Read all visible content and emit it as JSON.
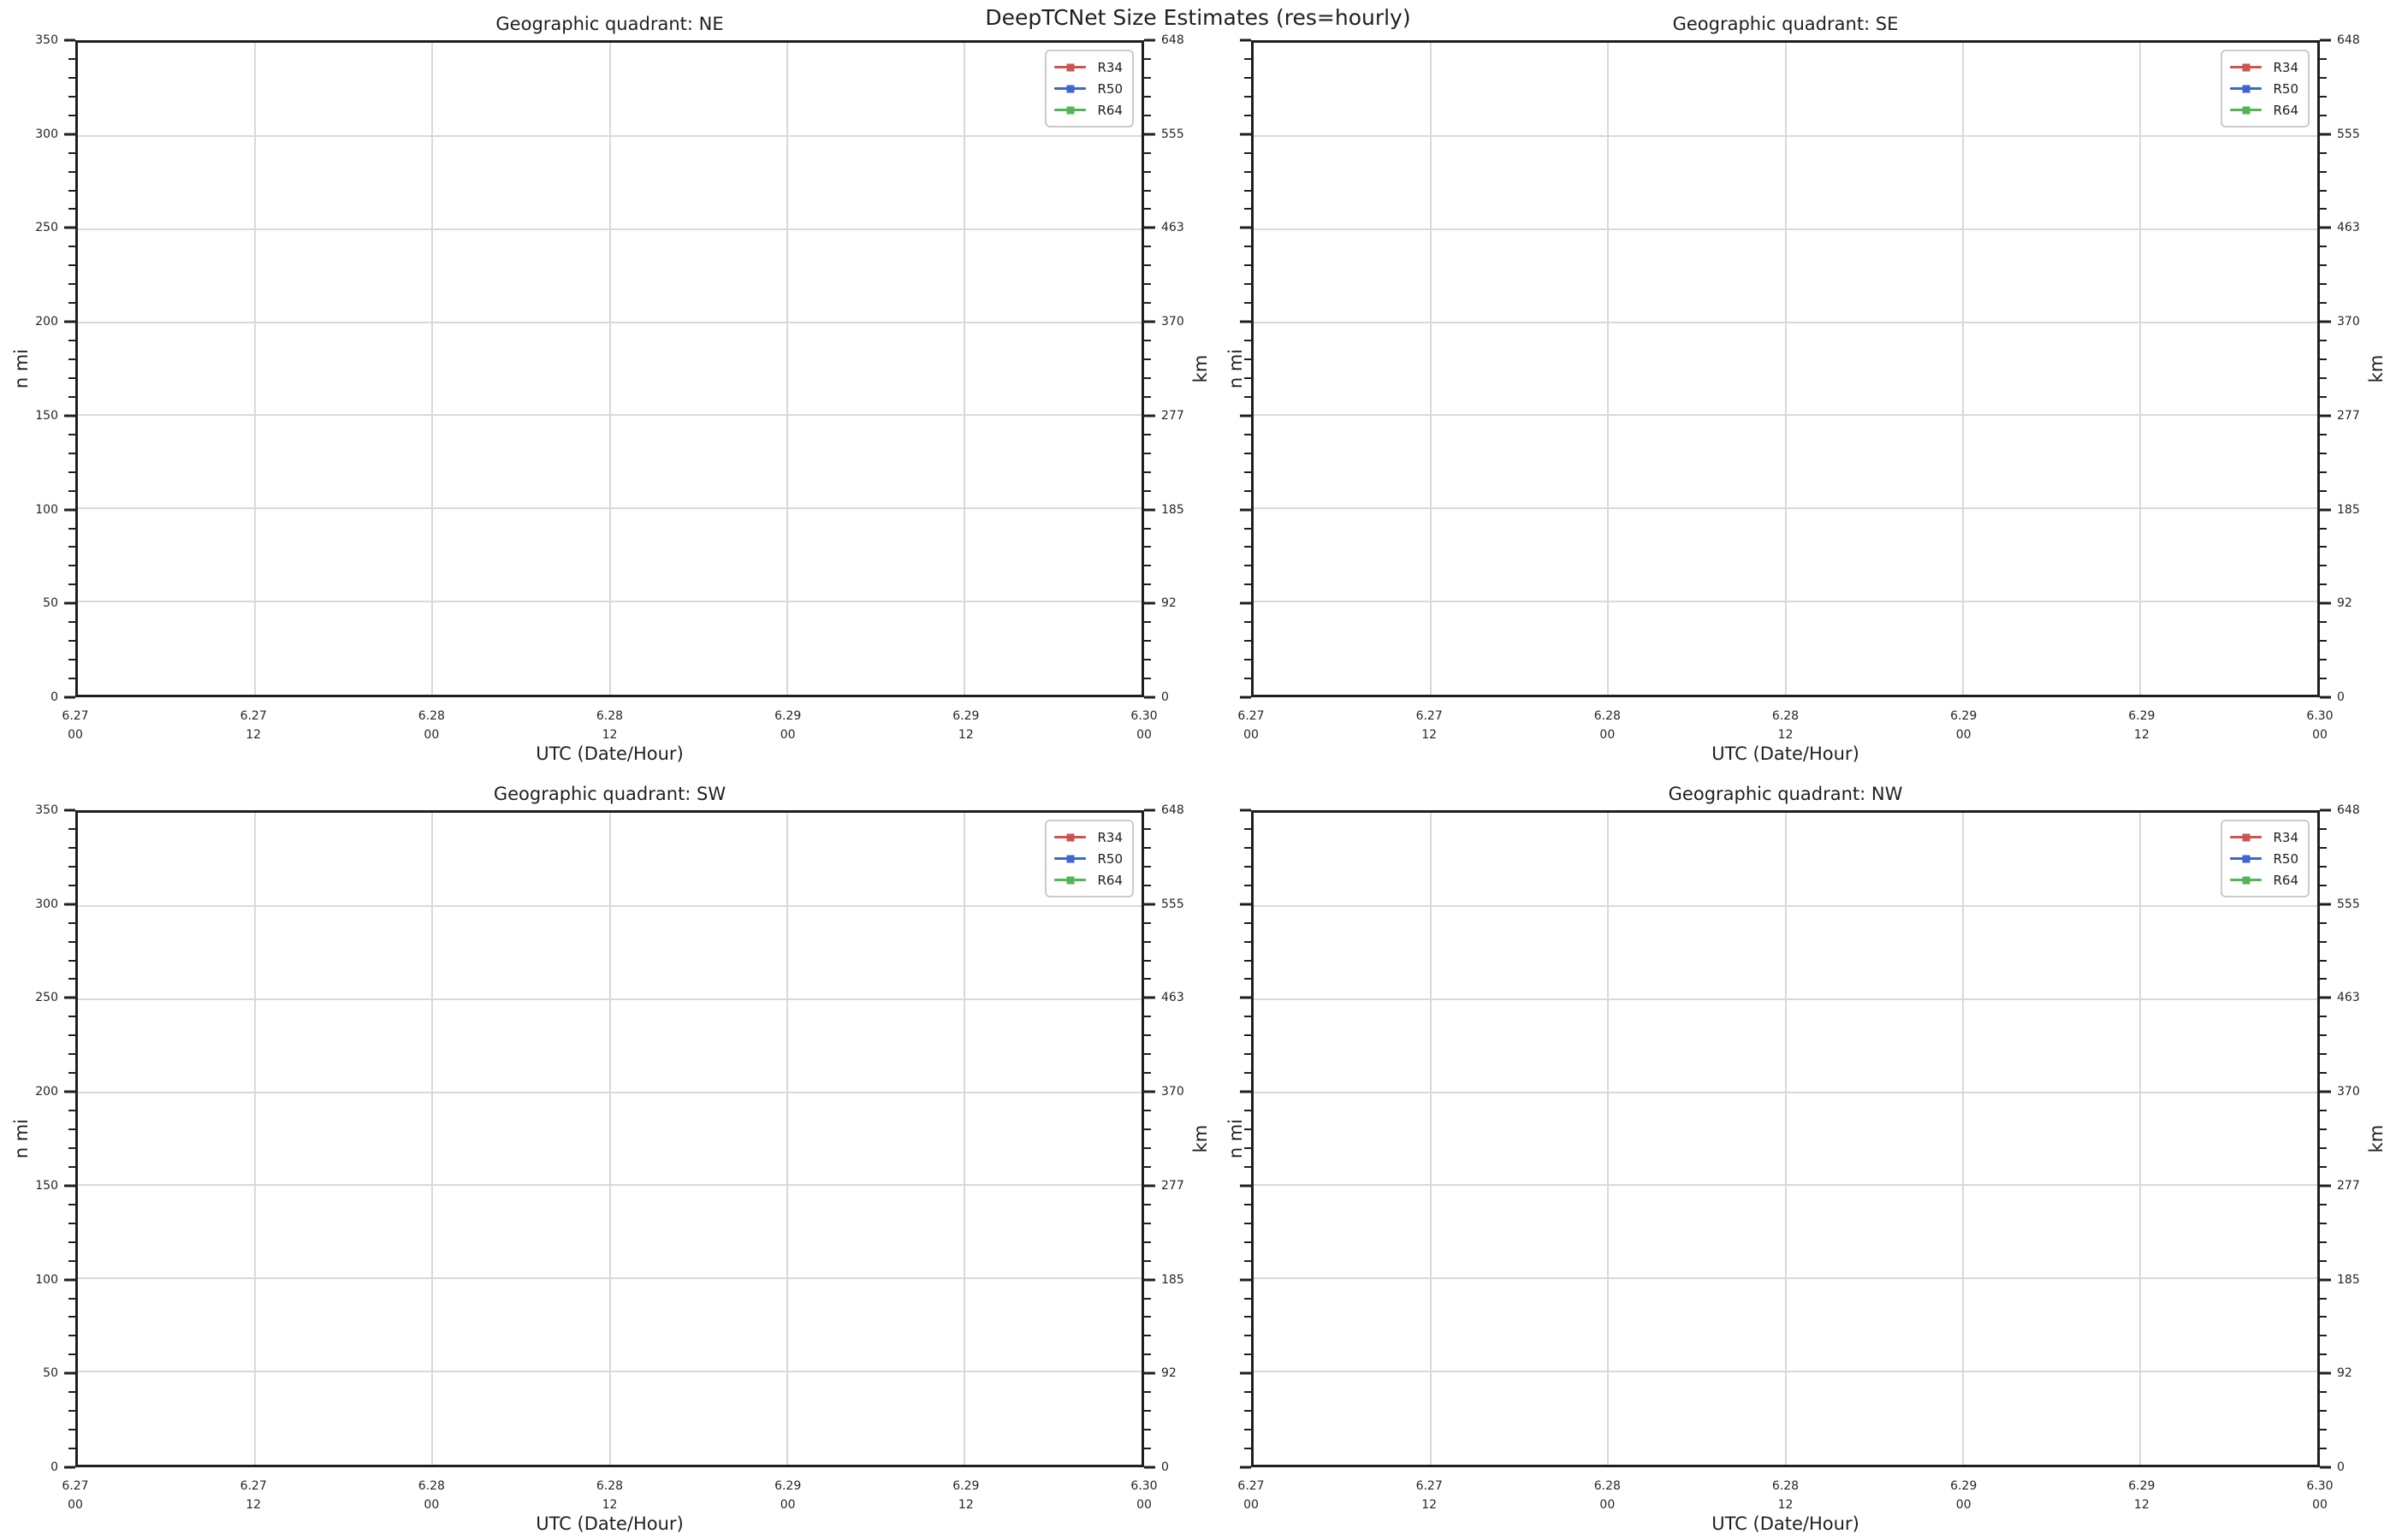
{
  "figure": {
    "suptitle": "DeepTCNet Size Estimates (res=hourly)",
    "background_color": "#ffffff",
    "text_color": "#1f1f1f",
    "grid_color": "#d9d9d9"
  },
  "legend": {
    "position": "upper right",
    "entries": [
      {
        "label": "R34",
        "color": "#cf5450"
      },
      {
        "label": "R50",
        "color": "#3f66d0"
      },
      {
        "label": "R64",
        "color": "#53b556"
      }
    ]
  },
  "chart_data": [
    {
      "type": "line",
      "title": "Geographic quadrant: NE",
      "quadrant": "NE",
      "xlabel": "UTC (Date/Hour)",
      "ylabel_left": "n mi",
      "ylabel_right": "km",
      "ylim_left": [
        0,
        350
      ],
      "ylim_right": [
        0,
        648
      ],
      "y_ticks_left": [
        0,
        50,
        100,
        150,
        200,
        250,
        300,
        350
      ],
      "y_ticks_right": [
        0,
        92,
        185,
        277,
        370,
        463,
        555,
        648
      ],
      "x_tick_labels": [
        [
          "6.27",
          "00"
        ],
        [
          "6.27",
          "12"
        ],
        [
          "6.28",
          "00"
        ],
        [
          "6.28",
          "12"
        ],
        [
          "6.29",
          "00"
        ],
        [
          "6.29",
          "12"
        ],
        [
          "6.30",
          "00"
        ]
      ],
      "grid": true,
      "legend_position": "upper right",
      "show_left_tick_labels": true,
      "series": [
        {
          "name": "R34",
          "color": "#cf5450",
          "x": [],
          "y": []
        },
        {
          "name": "R50",
          "color": "#3f66d0",
          "x": [],
          "y": []
        },
        {
          "name": "R64",
          "color": "#53b556",
          "x": [],
          "y": []
        }
      ]
    },
    {
      "type": "line",
      "title": "Geographic quadrant: SE",
      "quadrant": "SE",
      "xlabel": "UTC (Date/Hour)",
      "ylabel_left": "n mi",
      "ylabel_right": "km",
      "ylim_left": [
        0,
        350
      ],
      "ylim_right": [
        0,
        648
      ],
      "y_ticks_left": [
        0,
        50,
        100,
        150,
        200,
        250,
        300,
        350
      ],
      "y_ticks_right": [
        0,
        92,
        185,
        277,
        370,
        463,
        555,
        648
      ],
      "x_tick_labels": [
        [
          "6.27",
          "00"
        ],
        [
          "6.27",
          "12"
        ],
        [
          "6.28",
          "00"
        ],
        [
          "6.28",
          "12"
        ],
        [
          "6.29",
          "00"
        ],
        [
          "6.29",
          "12"
        ],
        [
          "6.30",
          "00"
        ]
      ],
      "grid": true,
      "legend_position": "upper right",
      "show_left_tick_labels": false,
      "series": [
        {
          "name": "R34",
          "color": "#cf5450",
          "x": [],
          "y": []
        },
        {
          "name": "R50",
          "color": "#3f66d0",
          "x": [],
          "y": []
        },
        {
          "name": "R64",
          "color": "#53b556",
          "x": [],
          "y": []
        }
      ]
    },
    {
      "type": "line",
      "title": "Geographic quadrant: SW",
      "quadrant": "SW",
      "xlabel": "UTC (Date/Hour)",
      "ylabel_left": "n mi",
      "ylabel_right": "km",
      "ylim_left": [
        0,
        350
      ],
      "ylim_right": [
        0,
        648
      ],
      "y_ticks_left": [
        0,
        50,
        100,
        150,
        200,
        250,
        300,
        350
      ],
      "y_ticks_right": [
        0,
        92,
        185,
        277,
        370,
        463,
        555,
        648
      ],
      "x_tick_labels": [
        [
          "6.27",
          "00"
        ],
        [
          "6.27",
          "12"
        ],
        [
          "6.28",
          "00"
        ],
        [
          "6.28",
          "12"
        ],
        [
          "6.29",
          "00"
        ],
        [
          "6.29",
          "12"
        ],
        [
          "6.30",
          "00"
        ]
      ],
      "grid": true,
      "legend_position": "upper right",
      "show_left_tick_labels": true,
      "series": [
        {
          "name": "R34",
          "color": "#cf5450",
          "x": [],
          "y": []
        },
        {
          "name": "R50",
          "color": "#3f66d0",
          "x": [],
          "y": []
        },
        {
          "name": "R64",
          "color": "#53b556",
          "x": [],
          "y": []
        }
      ]
    },
    {
      "type": "line",
      "title": "Geographic quadrant: NW",
      "quadrant": "NW",
      "xlabel": "UTC (Date/Hour)",
      "ylabel_left": "n mi",
      "ylabel_right": "km",
      "ylim_left": [
        0,
        350
      ],
      "ylim_right": [
        0,
        648
      ],
      "y_ticks_left": [
        0,
        50,
        100,
        150,
        200,
        250,
        300,
        350
      ],
      "y_ticks_right": [
        0,
        92,
        185,
        277,
        370,
        463,
        555,
        648
      ],
      "x_tick_labels": [
        [
          "6.27",
          "00"
        ],
        [
          "6.27",
          "12"
        ],
        [
          "6.28",
          "00"
        ],
        [
          "6.28",
          "12"
        ],
        [
          "6.29",
          "00"
        ],
        [
          "6.29",
          "12"
        ],
        [
          "6.30",
          "00"
        ]
      ],
      "grid": true,
      "legend_position": "upper right",
      "show_left_tick_labels": false,
      "series": [
        {
          "name": "R34",
          "color": "#cf5450",
          "x": [],
          "y": []
        },
        {
          "name": "R50",
          "color": "#3f66d0",
          "x": [],
          "y": []
        },
        {
          "name": "R64",
          "color": "#53b556",
          "x": [],
          "y": []
        }
      ]
    }
  ]
}
